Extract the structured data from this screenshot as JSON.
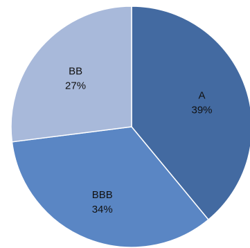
{
  "chart_data": {
    "type": "pie",
    "categories": [
      "A",
      "BBB",
      "BB"
    ],
    "values": [
      39,
      34,
      27
    ],
    "value_labels": [
      "39%",
      "34%",
      "27%"
    ],
    "colors": [
      "#436aa1",
      "#5a86c4",
      "#a8b9da"
    ],
    "start": "12 o'clock",
    "direction": "clockwise",
    "legend": "none",
    "title": ""
  }
}
